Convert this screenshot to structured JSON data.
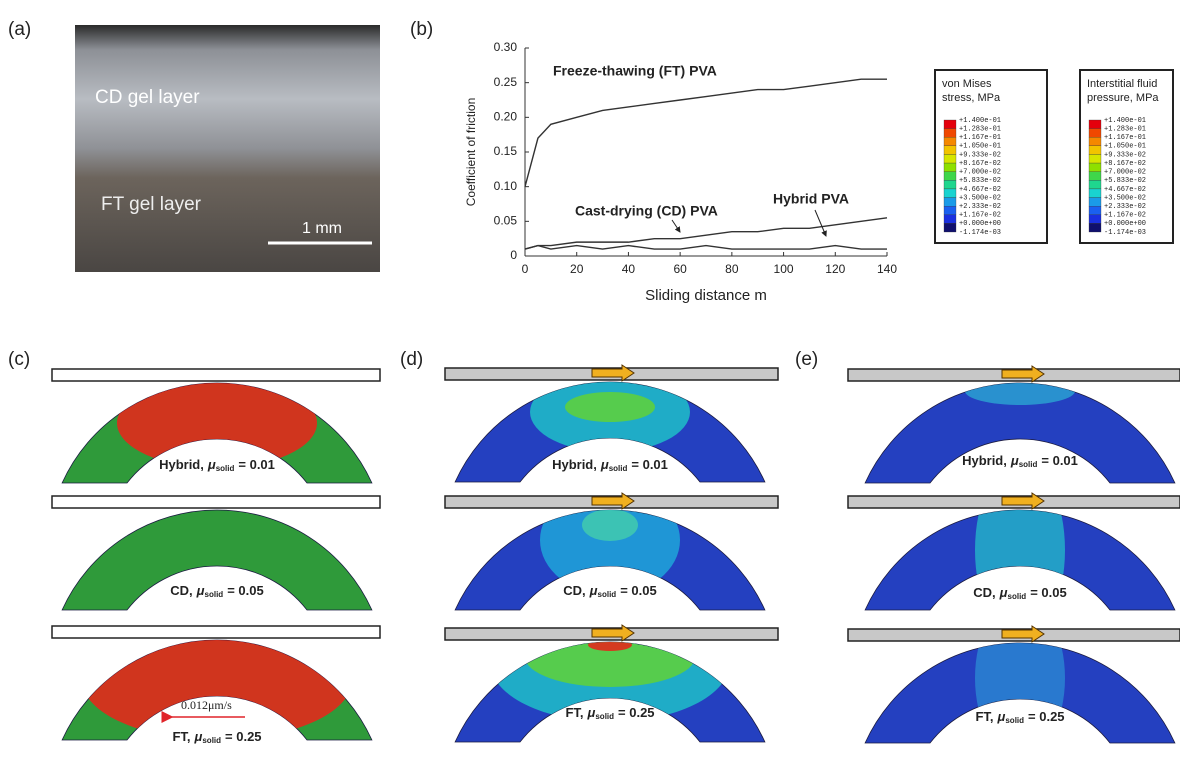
{
  "panel_labels": [
    "(a)",
    "(b)",
    "(c)",
    "(d)",
    "(e)"
  ],
  "photo": {
    "labels": [
      "CD gel layer",
      "FT gel layer"
    ],
    "scale_bar": "1 mm"
  },
  "chart_data": {
    "type": "line",
    "x_label": "Sliding distance  m",
    "y_label": "Coefficient of friction",
    "x": [
      0,
      5,
      10,
      20,
      30,
      40,
      50,
      60,
      70,
      80,
      90,
      100,
      110,
      120,
      130,
      140
    ],
    "series": [
      {
        "name": "Freeze-thawing (FT) PVA",
        "color": "#333333",
        "values": [
          0.1,
          0.17,
          0.19,
          0.2,
          0.21,
          0.215,
          0.22,
          0.225,
          0.23,
          0.235,
          0.24,
          0.24,
          0.245,
          0.25,
          0.255,
          0.255
        ]
      },
      {
        "name": "Cast-drying (CD) PVA",
        "color": "#333333",
        "values": [
          0.01,
          0.015,
          0.01,
          0.015,
          0.01,
          0.015,
          0.01,
          0.01,
          0.015,
          0.01,
          0.01,
          0.01,
          0.01,
          0.015,
          0.01,
          0.01
        ]
      },
      {
        "name": "Hybrid PVA",
        "color": "#333333",
        "values": [
          0.01,
          0.015,
          0.015,
          0.02,
          0.02,
          0.02,
          0.025,
          0.025,
          0.03,
          0.035,
          0.035,
          0.04,
          0.04,
          0.045,
          0.05,
          0.055
        ]
      }
    ],
    "xlim": [
      0,
      140
    ],
    "xticks": [
      0,
      20,
      40,
      60,
      80,
      100,
      120,
      140
    ],
    "ylim": [
      0,
      0.3
    ],
    "yticks": [
      0,
      0.05,
      {
        "value": 0.1,
        "label": "0.10"
      },
      0.15,
      {
        "value": 0.2,
        "label": "0.20"
      },
      0.25,
      {
        "value": 0.3,
        "label": "0.30"
      }
    ],
    "grid": false
  },
  "color_legends": [
    {
      "title": [
        "von Mises",
        "stress, MPa"
      ]
    },
    {
      "title": [
        "Interstitial fluid",
        "pressure, MPa"
      ]
    }
  ],
  "legend_labels": [
    "+1.400e-01",
    "+1.283e-01",
    "+1.167e-01",
    "+1.050e-01",
    "+9.333e-02",
    "+8.167e-02",
    "+7.000e-02",
    "+5.833e-02",
    "+4.667e-02",
    "+3.500e-02",
    "+2.333e-02",
    "+1.167e-02",
    "+0.000e+00",
    "-1.174e-03"
  ],
  "legend_colors": [
    "#e4000c",
    "#f04800",
    "#f58800",
    "#f2c400",
    "#d6e600",
    "#8ee000",
    "#3fd64a",
    "#1fd68e",
    "#19d3d0",
    "#1a9be8",
    "#1a60f0",
    "#1a30e0",
    "#10106e"
  ],
  "simulations": [
    {
      "captions": [
        {
          "name": "Hybrid,",
          "symbol": "μ",
          "subscript": "solid",
          "value": "= 0.01"
        },
        {
          "name": "CD,",
          "symbol": "μ",
          "subscript": "solid",
          "value": "= 0.05"
        },
        {
          "name": "FT,",
          "symbol": "μ",
          "subscript": "solid",
          "value": "= 0.25"
        }
      ],
      "flow_label": "0.012μm/s"
    },
    {
      "captions": [
        {
          "name": "Hybrid,",
          "symbol": "μ",
          "subscript": "solid",
          "value": "= 0.01"
        },
        {
          "name": "CD,",
          "symbol": "μ",
          "subscript": "solid",
          "value": "= 0.05"
        },
        {
          "name": "FT,",
          "symbol": "μ",
          "subscript": "solid",
          "value": "= 0.25"
        }
      ]
    },
    {
      "captions": [
        {
          "name": "Hybrid,",
          "symbol": "μ",
          "subscript": "solid",
          "value": "= 0.01"
        },
        {
          "name": "CD,",
          "symbol": "μ",
          "subscript": "solid",
          "value": "= 0.05"
        },
        {
          "name": "FT,",
          "symbol": "μ",
          "subscript": "solid",
          "value": "= 0.25"
        }
      ]
    }
  ]
}
